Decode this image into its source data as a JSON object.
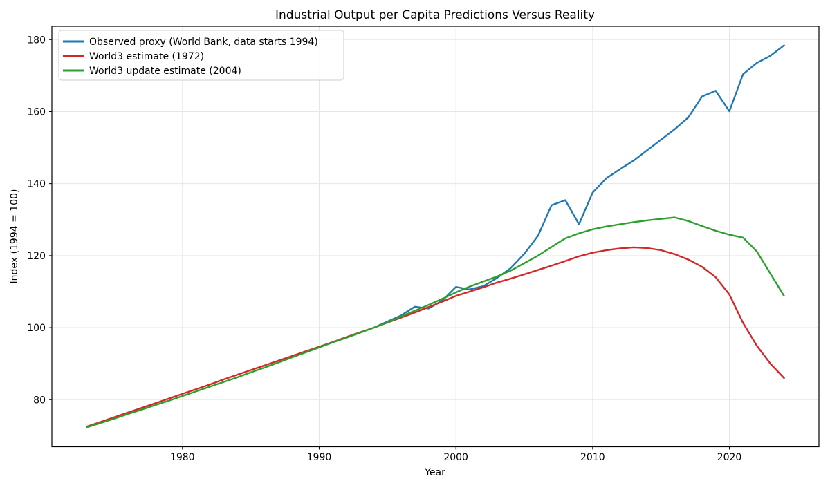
{
  "chart_data": {
    "type": "line",
    "title": "Industrial Output per Capita Predictions Versus Reality",
    "xlabel": "Year",
    "ylabel": "Index (1994 = 100)",
    "xlim": [
      1970.45,
      2026.55
    ],
    "ylim": [
      66.9,
      183.7
    ],
    "xticks": [
      1980,
      1990,
      2000,
      2010,
      2020
    ],
    "yticks": [
      80,
      100,
      120,
      140,
      160,
      180
    ],
    "grid": true,
    "grid_color": "#e6e6e6",
    "spine_color": "#000000",
    "background": "#ffffff",
    "legend": {
      "position": "upper-left"
    },
    "series": [
      {
        "name": "Observed proxy (World Bank, data starts 1994)",
        "color": "#1f77b4",
        "x": [
          1994,
          1995,
          1996,
          1997,
          1998,
          1999,
          2000,
          2001,
          2002,
          2003,
          2004,
          2005,
          2006,
          2007,
          2008,
          2009,
          2010,
          2011,
          2012,
          2013,
          2014,
          2015,
          2016,
          2017,
          2018,
          2019,
          2020,
          2021,
          2022,
          2023,
          2024
        ],
        "y": [
          100.0,
          101.7,
          103.4,
          105.8,
          105.3,
          107.5,
          111.3,
          110.6,
          111.5,
          113.8,
          116.5,
          120.5,
          125.5,
          134.0,
          135.4,
          128.7,
          137.5,
          141.5,
          144.0,
          146.4,
          149.3,
          152.2,
          155.1,
          158.4,
          164.2,
          165.8,
          160.1,
          170.4,
          173.5,
          175.5,
          178.4
        ]
      },
      {
        "name": "World3 estimate (1972)",
        "color": "#d62728",
        "x": [
          1973,
          1974,
          1975,
          1976,
          1977,
          1978,
          1979,
          1980,
          1981,
          1982,
          1983,
          1984,
          1985,
          1986,
          1987,
          1988,
          1989,
          1990,
          1991,
          1992,
          1993,
          1994,
          1995,
          1996,
          1997,
          1998,
          1999,
          2000,
          2001,
          2002,
          2003,
          2004,
          2005,
          2006,
          2007,
          2008,
          2009,
          2010,
          2011,
          2012,
          2013,
          2014,
          2015,
          2016,
          2017,
          2018,
          2019,
          2020,
          2021,
          2022,
          2023,
          2024
        ],
        "y": [
          72.5,
          73.8,
          75.1,
          76.4,
          77.7,
          79.0,
          80.3,
          81.6,
          82.9,
          84.2,
          85.6,
          86.9,
          88.2,
          89.5,
          90.8,
          92.1,
          93.4,
          94.7,
          96.0,
          97.4,
          98.7,
          100.0,
          101.4,
          102.8,
          104.2,
          105.7,
          107.2,
          108.8,
          110.0,
          111.2,
          112.5,
          113.6,
          114.8,
          116.0,
          117.2,
          118.5,
          119.8,
          120.8,
          121.5,
          122.0,
          122.3,
          122.1,
          121.5,
          120.4,
          118.9,
          116.9,
          114.0,
          109.2,
          101.3,
          95.0,
          90.0,
          86.0
        ]
      },
      {
        "name": "World3 update estimate (2004)",
        "color": "#2ca02c",
        "x": [
          1973,
          1974,
          1975,
          1976,
          1977,
          1978,
          1979,
          1980,
          1981,
          1982,
          1983,
          1984,
          1985,
          1986,
          1987,
          1988,
          1989,
          1990,
          1991,
          1992,
          1993,
          1994,
          1995,
          1996,
          1997,
          1998,
          1999,
          2000,
          2001,
          2002,
          2003,
          2004,
          2005,
          2006,
          2007,
          2008,
          2009,
          2010,
          2011,
          2012,
          2013,
          2014,
          2015,
          2016,
          2017,
          2018,
          2019,
          2020,
          2021,
          2022,
          2023,
          2024
        ],
        "y": [
          72.3,
          73.5,
          74.7,
          76.0,
          77.2,
          78.5,
          79.7,
          81.0,
          82.3,
          83.6,
          84.9,
          86.2,
          87.6,
          88.9,
          90.3,
          91.7,
          93.1,
          94.5,
          95.9,
          97.2,
          98.6,
          100.0,
          101.5,
          103.1,
          104.7,
          106.3,
          108.0,
          109.8,
          111.4,
          112.8,
          114.2,
          115.8,
          117.9,
          120.0,
          122.4,
          124.8,
          126.2,
          127.3,
          128.1,
          128.7,
          129.3,
          129.8,
          130.2,
          130.6,
          129.6,
          128.2,
          126.9,
          125.8,
          125.0,
          121.2,
          115.0,
          108.8
        ]
      }
    ]
  }
}
